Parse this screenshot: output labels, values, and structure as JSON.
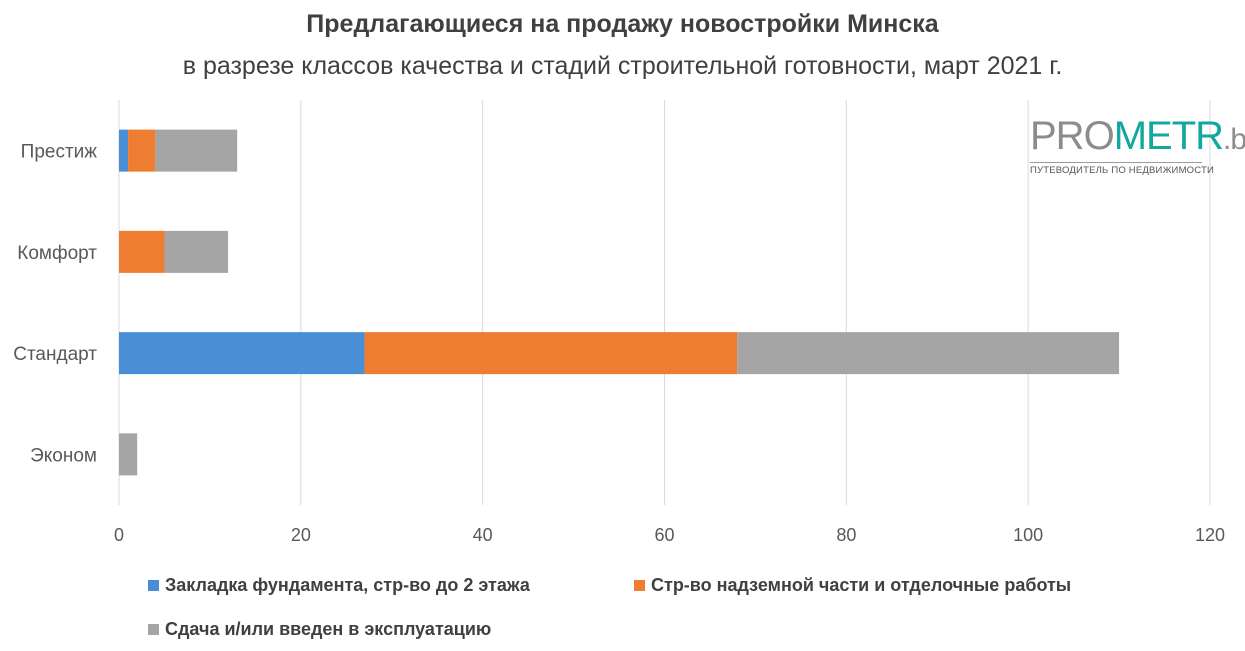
{
  "chart_data": {
    "type": "bar",
    "orientation": "horizontal",
    "stacked": true,
    "title": "Предлагающиеся на продажу новостройки Минска",
    "subtitle": "в разрезе классов качества и стадий строительной готовности, март 2021 г.",
    "categories": [
      "Престиж",
      "Комфорт",
      "Стандарт",
      "Эконом"
    ],
    "series": [
      {
        "name": "Закладка фундамента, стр-во до 2 этажа",
        "color": "#4a8fd6",
        "values": [
          1,
          0,
          27,
          0
        ]
      },
      {
        "name": "Стр-во надземной части и отделочные работы",
        "color": "#ee7d31",
        "values": [
          3,
          5,
          41,
          0
        ]
      },
      {
        "name": "Сдача и/или введен в эксплуатацию",
        "color": "#a5a5a5",
        "values": [
          9,
          7,
          42,
          2
        ]
      }
    ],
    "xlim": [
      0,
      120
    ],
    "xticks": [
      "0",
      "20",
      "40",
      "60",
      "80",
      "100",
      "120"
    ],
    "grid": true,
    "legend_position": "bottom"
  },
  "logo": {
    "pro": "PRO",
    "metr": "METR",
    "by": ".by",
    "tagline": "ПУТЕВОДИТЕЛЬ ПО НЕДВИЖИМОСТИ"
  }
}
